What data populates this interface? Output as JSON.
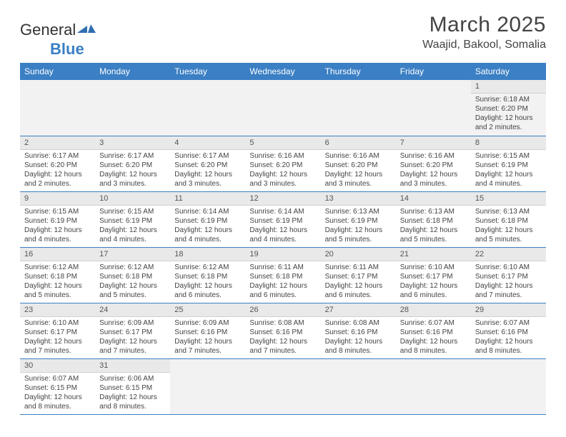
{
  "brand": {
    "part1": "General",
    "part2": "Blue",
    "mark_color": "#2f6fb0"
  },
  "title": "March 2025",
  "location": "Waajid, Bakool, Somalia",
  "colors": {
    "header_bg": "#3b7fc4",
    "header_text": "#ffffff",
    "row_divider": "#3b7fc4",
    "daynum_bg": "#e9e9e9",
    "empty_bg": "#f2f2f2",
    "body_text": "#444444"
  },
  "weekdays": [
    "Sunday",
    "Monday",
    "Tuesday",
    "Wednesday",
    "Thursday",
    "Friday",
    "Saturday"
  ],
  "weeks": [
    [
      null,
      null,
      null,
      null,
      null,
      null,
      {
        "n": "1",
        "sunrise": "6:18 AM",
        "sunset": "6:20 PM",
        "daylight": "12 hours and 2 minutes."
      }
    ],
    [
      {
        "n": "2",
        "sunrise": "6:17 AM",
        "sunset": "6:20 PM",
        "daylight": "12 hours and 2 minutes."
      },
      {
        "n": "3",
        "sunrise": "6:17 AM",
        "sunset": "6:20 PM",
        "daylight": "12 hours and 3 minutes."
      },
      {
        "n": "4",
        "sunrise": "6:17 AM",
        "sunset": "6:20 PM",
        "daylight": "12 hours and 3 minutes."
      },
      {
        "n": "5",
        "sunrise": "6:16 AM",
        "sunset": "6:20 PM",
        "daylight": "12 hours and 3 minutes."
      },
      {
        "n": "6",
        "sunrise": "6:16 AM",
        "sunset": "6:20 PM",
        "daylight": "12 hours and 3 minutes."
      },
      {
        "n": "7",
        "sunrise": "6:16 AM",
        "sunset": "6:20 PM",
        "daylight": "12 hours and 3 minutes."
      },
      {
        "n": "8",
        "sunrise": "6:15 AM",
        "sunset": "6:19 PM",
        "daylight": "12 hours and 4 minutes."
      }
    ],
    [
      {
        "n": "9",
        "sunrise": "6:15 AM",
        "sunset": "6:19 PM",
        "daylight": "12 hours and 4 minutes."
      },
      {
        "n": "10",
        "sunrise": "6:15 AM",
        "sunset": "6:19 PM",
        "daylight": "12 hours and 4 minutes."
      },
      {
        "n": "11",
        "sunrise": "6:14 AM",
        "sunset": "6:19 PM",
        "daylight": "12 hours and 4 minutes."
      },
      {
        "n": "12",
        "sunrise": "6:14 AM",
        "sunset": "6:19 PM",
        "daylight": "12 hours and 4 minutes."
      },
      {
        "n": "13",
        "sunrise": "6:13 AM",
        "sunset": "6:19 PM",
        "daylight": "12 hours and 5 minutes."
      },
      {
        "n": "14",
        "sunrise": "6:13 AM",
        "sunset": "6:18 PM",
        "daylight": "12 hours and 5 minutes."
      },
      {
        "n": "15",
        "sunrise": "6:13 AM",
        "sunset": "6:18 PM",
        "daylight": "12 hours and 5 minutes."
      }
    ],
    [
      {
        "n": "16",
        "sunrise": "6:12 AM",
        "sunset": "6:18 PM",
        "daylight": "12 hours and 5 minutes."
      },
      {
        "n": "17",
        "sunrise": "6:12 AM",
        "sunset": "6:18 PM",
        "daylight": "12 hours and 5 minutes."
      },
      {
        "n": "18",
        "sunrise": "6:12 AM",
        "sunset": "6:18 PM",
        "daylight": "12 hours and 6 minutes."
      },
      {
        "n": "19",
        "sunrise": "6:11 AM",
        "sunset": "6:18 PM",
        "daylight": "12 hours and 6 minutes."
      },
      {
        "n": "20",
        "sunrise": "6:11 AM",
        "sunset": "6:17 PM",
        "daylight": "12 hours and 6 minutes."
      },
      {
        "n": "21",
        "sunrise": "6:10 AM",
        "sunset": "6:17 PM",
        "daylight": "12 hours and 6 minutes."
      },
      {
        "n": "22",
        "sunrise": "6:10 AM",
        "sunset": "6:17 PM",
        "daylight": "12 hours and 7 minutes."
      }
    ],
    [
      {
        "n": "23",
        "sunrise": "6:10 AM",
        "sunset": "6:17 PM",
        "daylight": "12 hours and 7 minutes."
      },
      {
        "n": "24",
        "sunrise": "6:09 AM",
        "sunset": "6:17 PM",
        "daylight": "12 hours and 7 minutes."
      },
      {
        "n": "25",
        "sunrise": "6:09 AM",
        "sunset": "6:16 PM",
        "daylight": "12 hours and 7 minutes."
      },
      {
        "n": "26",
        "sunrise": "6:08 AM",
        "sunset": "6:16 PM",
        "daylight": "12 hours and 7 minutes."
      },
      {
        "n": "27",
        "sunrise": "6:08 AM",
        "sunset": "6:16 PM",
        "daylight": "12 hours and 8 minutes."
      },
      {
        "n": "28",
        "sunrise": "6:07 AM",
        "sunset": "6:16 PM",
        "daylight": "12 hours and 8 minutes."
      },
      {
        "n": "29",
        "sunrise": "6:07 AM",
        "sunset": "6:16 PM",
        "daylight": "12 hours and 8 minutes."
      }
    ],
    [
      {
        "n": "30",
        "sunrise": "6:07 AM",
        "sunset": "6:15 PM",
        "daylight": "12 hours and 8 minutes."
      },
      {
        "n": "31",
        "sunrise": "6:06 AM",
        "sunset": "6:15 PM",
        "daylight": "12 hours and 8 minutes."
      },
      null,
      null,
      null,
      null,
      null
    ]
  ],
  "labels": {
    "sunrise": "Sunrise:",
    "sunset": "Sunset:",
    "daylight": "Daylight:"
  }
}
